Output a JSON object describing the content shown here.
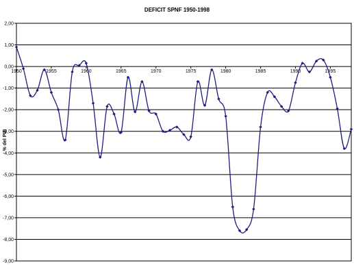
{
  "chart_data": {
    "type": "line",
    "title": "DEFICIT SPNF 1950-1998",
    "xlabel": "",
    "ylabel": "% del PIB",
    "ylim": [
      -9,
      2
    ],
    "y_ticks": [
      2,
      1,
      0,
      -1,
      -2,
      -3,
      -4,
      -5,
      -6,
      -7,
      -8,
      -9
    ],
    "y_tick_labels": [
      "2,00",
      "1,00",
      "0,00",
      "-1,00",
      "-2,00",
      "-3,00",
      "-4,00",
      "-5,00",
      "-6,00",
      "-7,00",
      "-8,00",
      "-9,00"
    ],
    "x_tick_labels": [
      "1950",
      "1955",
      "1960",
      "1965",
      "1970",
      "1975",
      "1980",
      "1985",
      "1990",
      "1995"
    ],
    "xlim": [
      1950,
      1998
    ],
    "grid": "horizontal",
    "line_color": "#1c1c80",
    "series": [
      {
        "x": [
          1950,
          1951,
          1952,
          1953,
          1954,
          1955,
          1956,
          1957,
          1958,
          1959,
          1960,
          1961,
          1962,
          1963,
          1964,
          1965,
          1966,
          1967,
          1968,
          1969,
          1970,
          1971,
          1972,
          1973,
          1974,
          1975,
          1976,
          1977,
          1978,
          1979,
          1980,
          1981,
          1982,
          1983,
          1984,
          1985,
          1986,
          1987,
          1988,
          1989,
          1990,
          1991,
          1992,
          1993,
          1994,
          1995,
          1996,
          1997,
          1998
        ],
        "values": [
          0.9,
          -0.1,
          -1.35,
          -1.1,
          -0.15,
          -1.2,
          -2.0,
          -3.4,
          -0.25,
          0.05,
          0.15,
          -1.7,
          -4.2,
          -1.85,
          -2.2,
          -3.05,
          -0.5,
          -2.1,
          -0.7,
          -2.05,
          -2.2,
          -3.0,
          -2.95,
          -2.8,
          -3.15,
          -3.25,
          -0.7,
          -1.8,
          -0.15,
          -1.5,
          -2.3,
          -6.5,
          -7.6,
          -7.55,
          -6.6,
          -2.8,
          -1.2,
          -1.4,
          -1.85,
          -2.05,
          -0.75,
          0.15,
          -0.25,
          0.25,
          0.3,
          -0.5,
          -1.95,
          -3.8,
          -2.9
        ]
      }
    ]
  }
}
